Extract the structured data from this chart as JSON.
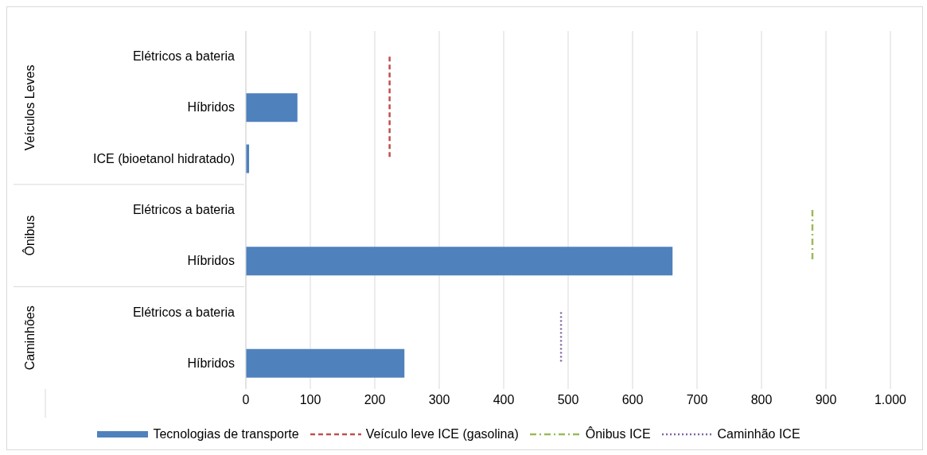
{
  "chart_data": {
    "type": "bar",
    "orientation": "horizontal",
    "categories": [
      "Elétricos a bateria",
      "Híbridos",
      "ICE (bioetanol hidratado)",
      "Elétricos a bateria",
      "Híbridos",
      "Elétricos a bateria",
      "Híbridos"
    ],
    "series": [
      {
        "name": "Tecnologias de transporte",
        "color": "#4f81bd",
        "values": [
          0,
          80,
          5,
          0,
          662,
          0,
          246
        ]
      },
      {
        "name": "Veículo leve ICE (gasolina)",
        "type": "line",
        "color": "#c0504d",
        "line_style": "dashed",
        "values": [
          223,
          223,
          223,
          null,
          null,
          null,
          null
        ]
      },
      {
        "name": "Ônibus ICE",
        "type": "line",
        "color": "#9bbb59",
        "line_style": "dashdot",
        "values": [
          null,
          null,
          null,
          879,
          879,
          null,
          null
        ]
      },
      {
        "name": "Caminhão ICE",
        "type": "line",
        "color": "#8064a2",
        "line_style": "dotted",
        "values": [
          null,
          null,
          null,
          null,
          null,
          489,
          489
        ]
      }
    ],
    "annotations": [
      "Veículos Leves",
      "Ônibus",
      "Caminhões"
    ],
    "xlim": [
      0,
      1000
    ],
    "xticks": [
      0,
      100,
      200,
      300,
      400,
      500,
      600,
      700,
      800,
      900,
      {
        "value": 1000,
        "label": "1.000"
      }
    ],
    "grid": "x",
    "legend": "bottom"
  }
}
